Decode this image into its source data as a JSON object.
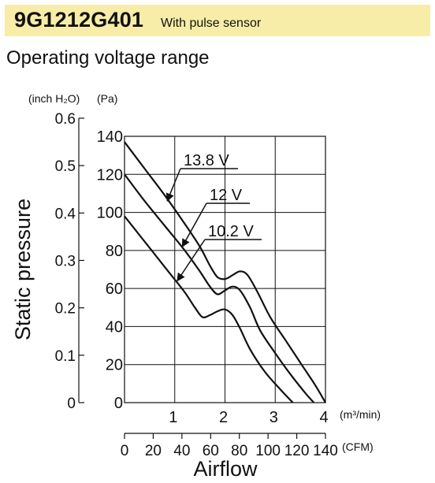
{
  "header": {
    "model": "9G1212G401",
    "subtitle": "With pulse sensor"
  },
  "section_title": "Operating voltage range",
  "colors": {
    "header_band": "#f7eda8",
    "ink": "#111111",
    "grid": "#111111"
  },
  "chart_data": {
    "type": "line",
    "title": "",
    "xlabel": "Airflow",
    "ylabel": "Static pressure",
    "x_unit_primary": "(m³/min)",
    "x_unit_secondary": "(CFM)",
    "y_unit_primary": "(Pa)",
    "y_unit_secondary": "(inch H₂O)",
    "xlim": [
      0,
      4
    ],
    "ylim": [
      0,
      140
    ],
    "x_ticks": [
      "1",
      "2",
      "3",
      "4"
    ],
    "x_ticks_cfm": [
      "0",
      "20",
      "40",
      "60",
      "80",
      "100",
      "120",
      "140"
    ],
    "y_ticks": [
      "0",
      "20",
      "40",
      "60",
      "80",
      "100",
      "120",
      "140"
    ],
    "y_ticks_inch": [
      "0",
      "0.1",
      "0.2",
      "0.3",
      "0.4",
      "0.5",
      "0.6"
    ],
    "grid": true,
    "series": [
      {
        "name": "13.8 V",
        "x": [
          0,
          0.4,
          0.8,
          1.2,
          1.5,
          1.7,
          1.85,
          2.0,
          2.15,
          2.3,
          2.45,
          2.65,
          2.9,
          3.2,
          3.5,
          3.8,
          4.0
        ],
        "y": [
          137,
          123,
          109,
          94,
          82,
          72,
          66,
          65,
          67,
          69,
          67,
          58,
          45,
          33,
          21,
          9,
          0
        ]
      },
      {
        "name": "12 V",
        "x": [
          0,
          0.4,
          0.8,
          1.2,
          1.5,
          1.7,
          1.85,
          2.0,
          2.15,
          2.3,
          2.5,
          2.7,
          3.0,
          3.3,
          3.6,
          3.77
        ],
        "y": [
          120,
          106,
          93,
          80,
          69,
          61,
          57,
          59,
          61,
          59,
          50,
          38,
          26,
          15,
          5,
          0
        ]
      },
      {
        "name": "10.2 V",
        "x": [
          0,
          0.3,
          0.6,
          0.9,
          1.2,
          1.4,
          1.55,
          1.7,
          1.85,
          2.0,
          2.15,
          2.3,
          2.5,
          2.8,
          3.1,
          3.35
        ],
        "y": [
          98,
          88,
          78,
          68,
          58,
          50,
          45,
          46,
          48,
          49,
          46,
          39,
          28,
          16,
          7,
          0
        ]
      }
    ]
  }
}
